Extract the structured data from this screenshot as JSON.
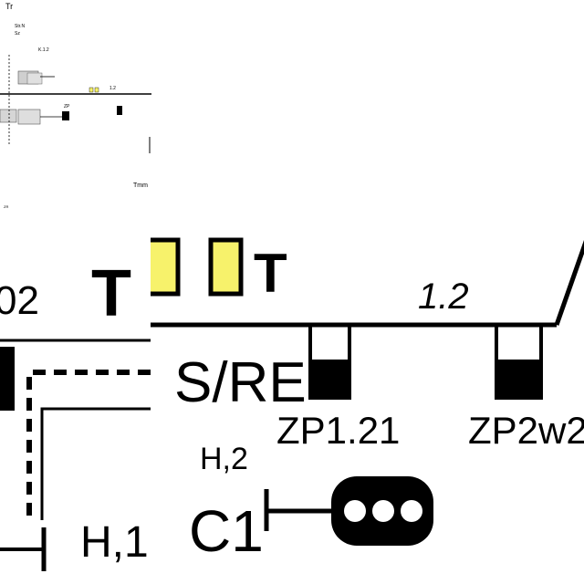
{
  "thumbnail": {
    "corner_label": "Tr",
    "header_lines": [
      "Str.N",
      "Sz"
    ],
    "label_top": "K.1.2",
    "label_right": "1.2",
    "label_mid": "ZP",
    "label_bottom_right": "Tmm",
    "label_footer": "ZR"
  },
  "left_zoom": {
    "label_code_partial": "02",
    "label_t": "T",
    "label_h": "H,1"
  },
  "main_zoom": {
    "label_t": "T",
    "track_label": "1.2",
    "label_sre": "S/RE",
    "label_zp1": "ZP1.21",
    "label_zp2": "ZP2w2",
    "label_h2": "H,2",
    "label_c1": "C1"
  },
  "colors": {
    "signal_yellow": "#f7f26b",
    "line": "#000000",
    "background": "#ffffff"
  }
}
